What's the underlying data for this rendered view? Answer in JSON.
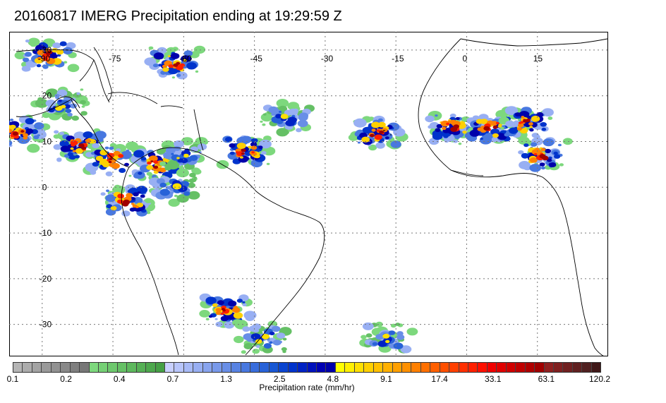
{
  "title": "20160817 IMERG Precipitation ending at 19:29:59 Z",
  "map": {
    "lon_range": [
      -97,
      30
    ],
    "lat_range": [
      -37,
      34
    ],
    "lon_labels": [
      {
        "value": -90,
        "text": "-90"
      },
      {
        "value": -75,
        "text": "-75"
      },
      {
        "value": -60,
        "text": "-60"
      },
      {
        "value": -45,
        "text": "-45"
      },
      {
        "value": -30,
        "text": "-30"
      },
      {
        "value": -15,
        "text": "-15"
      },
      {
        "value": 0,
        "text": "0"
      },
      {
        "value": 15,
        "text": "15"
      }
    ],
    "lat_labels": [
      {
        "value": 30,
        "text": "30"
      },
      {
        "value": 20,
        "text": "20"
      },
      {
        "value": 10,
        "text": "10"
      },
      {
        "value": 0,
        "text": "0"
      },
      {
        "value": -10,
        "text": "-10"
      },
      {
        "value": -20,
        "text": "-20"
      },
      {
        "value": -30,
        "text": "-30"
      }
    ],
    "grid": "dotted",
    "coastline_color": "#000000",
    "precip_regions": [
      {
        "name": "gulf-of-mexico-storms",
        "lon": -89,
        "lat": 29,
        "intensity": "heavy"
      },
      {
        "name": "yucatan-storms",
        "lon": -86,
        "lat": 18,
        "intensity": "moderate"
      },
      {
        "name": "central-america-storms",
        "lon": -82,
        "lat": 9,
        "intensity": "heavy"
      },
      {
        "name": "east-pacific-storms",
        "lon": -95,
        "lat": 12,
        "intensity": "heavy"
      },
      {
        "name": "colombia-storms",
        "lon": -75,
        "lat": 6,
        "intensity": "heavy"
      },
      {
        "name": "venezuela-storms",
        "lon": -66,
        "lat": 5,
        "intensity": "heavy"
      },
      {
        "name": "guyana-storms",
        "lon": -60,
        "lat": 7,
        "intensity": "moderate"
      },
      {
        "name": "amazon-west-storms",
        "lon": -72,
        "lat": -3,
        "intensity": "heavy"
      },
      {
        "name": "amazon-central-storms",
        "lon": -62,
        "lat": 0,
        "intensity": "moderate"
      },
      {
        "name": "bahamas-storms",
        "lon": -62,
        "lat": 27,
        "intensity": "heavy"
      },
      {
        "name": "atlantic-itcz-storms",
        "lon": -47,
        "lat": 8,
        "intensity": "heavy"
      },
      {
        "name": "mid-atlantic-cluster",
        "lon": -38,
        "lat": 15,
        "intensity": "moderate"
      },
      {
        "name": "west-africa-coast-storms",
        "lon": -19,
        "lat": 12,
        "intensity": "heavy"
      },
      {
        "name": "sahel-storms",
        "lon": -3,
        "lat": 13,
        "intensity": "heavy"
      },
      {
        "name": "nigeria-storms",
        "lon": 5,
        "lat": 13,
        "intensity": "heavy"
      },
      {
        "name": "chad-storms",
        "lon": 13,
        "lat": 14,
        "intensity": "heavy"
      },
      {
        "name": "central-africa-storms",
        "lon": 16,
        "lat": 7,
        "intensity": "heavy"
      },
      {
        "name": "south-brazil-storms",
        "lon": -51,
        "lat": -27,
        "intensity": "heavy"
      },
      {
        "name": "south-atlantic-front",
        "lon": -17,
        "lat": -33,
        "intensity": "moderate"
      },
      {
        "name": "uruguay-storms",
        "lon": -43,
        "lat": -33,
        "intensity": "moderate"
      }
    ]
  },
  "colorbar": {
    "label": "Precipitation rate (mm/hr)",
    "colors": [
      "#b5b5b5",
      "#acacac",
      "#a3a3a3",
      "#9a9a9a",
      "#919191",
      "#888888",
      "#7f7f7f",
      "#777777",
      "#7dd87d",
      "#75d075",
      "#6dc86d",
      "#65c065",
      "#5db85d",
      "#55b055",
      "#4da84d",
      "#45a045",
      "#c8d0ff",
      "#b8c5fb",
      "#a8baf7",
      "#98aff3",
      "#88a4ef",
      "#7899eb",
      "#688ee7",
      "#5883e3",
      "#4878e0",
      "#386ddc",
      "#2862d8",
      "#1857d4",
      "#0a44d0",
      "#0033cc",
      "#0022c4",
      "#0011bc",
      "#0000b4",
      "#0000aa",
      "#ffff00",
      "#fff000",
      "#ffe000",
      "#ffd000",
      "#ffc000",
      "#ffb000",
      "#ffa000",
      "#ff9000",
      "#ff8000",
      "#ff7000",
      "#ff6000",
      "#ff5000",
      "#ff4000",
      "#ff3000",
      "#ff2000",
      "#ff1000",
      "#f00000",
      "#e00000",
      "#d00000",
      "#c00000",
      "#b00000",
      "#a00000",
      "#902020",
      "#802020",
      "#702020",
      "#602020",
      "#502020",
      "#401818"
    ],
    "ticks": [
      {
        "text": "0.1",
        "index": 0
      },
      {
        "text": "0.2",
        "index": 8
      },
      {
        "text": "0.4",
        "index": 16
      },
      {
        "text": "0.7",
        "index": 24
      },
      {
        "text": "1.3",
        "index": 32
      },
      {
        "text": "2.5",
        "index": 40
      },
      {
        "text": "4.8",
        "index": 48
      },
      {
        "text": "9.1",
        "index": 56
      },
      {
        "text": "17.4",
        "index": 64
      },
      {
        "text": "33.1",
        "index": 72
      },
      {
        "text": "63.1",
        "index": 80
      },
      {
        "text": "120.2",
        "index": 88
      }
    ],
    "tick_slots": 88
  }
}
